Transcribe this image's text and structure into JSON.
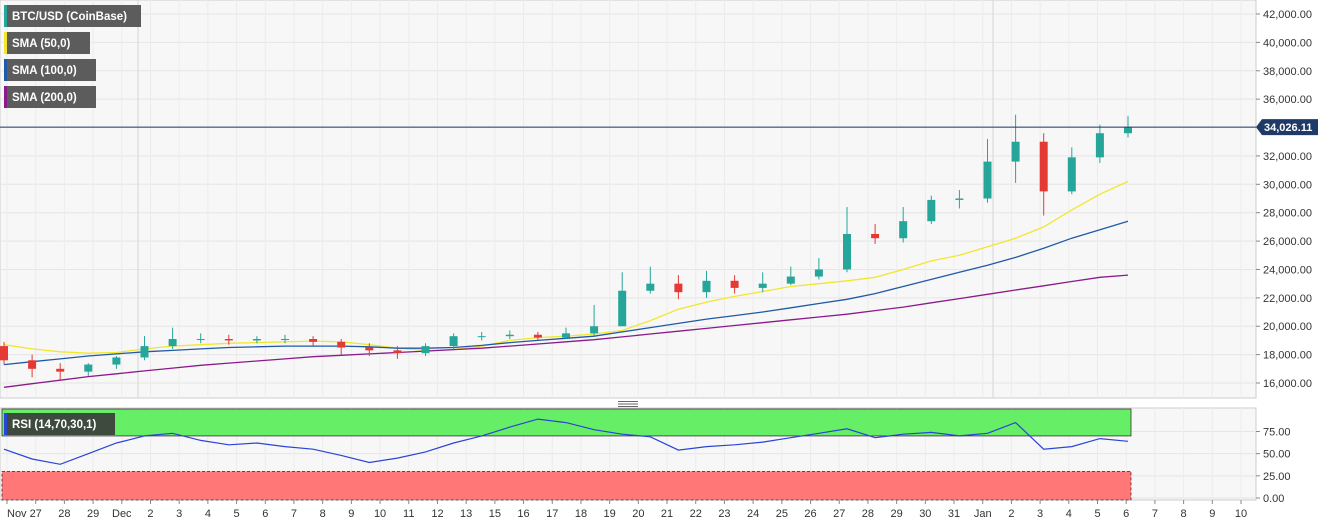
{
  "chart_data": [
    {
      "type": "candlestick",
      "title": "BTC/USD (CoinBase)",
      "last_price_label": "34,026.11",
      "last_price": 34026.11,
      "ylim": [
        15000,
        43000
      ],
      "y_ticks": [
        16000,
        18000,
        20000,
        22000,
        24000,
        26000,
        28000,
        30000,
        32000,
        34000,
        36000,
        38000,
        40000,
        42000
      ],
      "y_tick_labels": [
        "16,000.00",
        "18,000.00",
        "20,000.00",
        "22,000.00",
        "24,000.00",
        "26,000.00",
        "28,000.00",
        "30,000.00",
        "32,000.00",
        "34,000.00",
        "36,000.00",
        "38,000.00",
        "40,000.00",
        "42,000.00"
      ],
      "x_labels": [
        "Nov",
        "27",
        "28",
        "29",
        "Dec",
        "2",
        "3",
        "4",
        "5",
        "6",
        "7",
        "8",
        "9",
        "10",
        "11",
        "12",
        "13",
        "15",
        "16",
        "17",
        "18",
        "19",
        "20",
        "21",
        "22",
        "23",
        "24",
        "25",
        "26",
        "27",
        "28",
        "29",
        "30",
        "31",
        "Jan",
        "2",
        "3",
        "4",
        "5",
        "6",
        "7",
        "8",
        "9",
        "10"
      ],
      "grid": true,
      "series": [
        {
          "name": "SMA (50,0)",
          "type": "line",
          "values": [
            18700,
            18400,
            18200,
            18100,
            18150,
            18400,
            18600,
            18700,
            18800,
            18850,
            18900,
            18950,
            18900,
            18700,
            18450,
            18300,
            18350,
            18600,
            19000,
            19200,
            19300,
            19450,
            19700,
            20400,
            21200,
            21700,
            22100,
            22450,
            22800,
            23000,
            23200,
            23450,
            24000,
            24600,
            25000,
            25600,
            26200,
            27000,
            28200,
            29300,
            30200
          ]
        },
        {
          "name": "SMA (100,0)",
          "type": "line",
          "values": [
            17300,
            17500,
            17700,
            17900,
            18050,
            18200,
            18300,
            18400,
            18500,
            18550,
            18600,
            18600,
            18600,
            18550,
            18450,
            18450,
            18500,
            18650,
            18850,
            19000,
            19150,
            19300,
            19600,
            19900,
            20200,
            20500,
            20750,
            21000,
            21300,
            21600,
            21900,
            22300,
            22800,
            23300,
            23800,
            24300,
            24850,
            25500,
            26200,
            26800,
            27400
          ]
        },
        {
          "name": "SMA (200,0)",
          "type": "line",
          "values": [
            15700,
            15950,
            16200,
            16450,
            16650,
            16850,
            17050,
            17250,
            17400,
            17550,
            17700,
            17850,
            17950,
            18050,
            18150,
            18250,
            18350,
            18450,
            18600,
            18750,
            18900,
            19050,
            19250,
            19450,
            19650,
            19850,
            20050,
            20250,
            20450,
            20650,
            20850,
            21100,
            21350,
            21650,
            21950,
            22250,
            22550,
            22850,
            23150,
            23450,
            23600
          ]
        }
      ],
      "candles": {
        "open": [
          18600,
          17600,
          17000,
          16800,
          17300,
          17800,
          18600,
          19100,
          19100,
          19000,
          19100,
          19100,
          18900,
          18500,
          18300,
          18100,
          18600,
          19300,
          19300,
          19400,
          19200,
          19500,
          20000,
          22500,
          23000,
          22400,
          23200,
          22700,
          23000,
          23500,
          24000,
          26500,
          26200,
          27400,
          28900,
          29000,
          31600,
          33000,
          29500,
          31900,
          33600
        ],
        "close": [
          17600,
          17000,
          16800,
          17300,
          17800,
          18600,
          19100,
          19100,
          19000,
          19100,
          19100,
          18900,
          18500,
          18300,
          18100,
          18600,
          19300,
          19300,
          19400,
          19200,
          19500,
          20000,
          22500,
          23000,
          22400,
          23200,
          22700,
          23000,
          23500,
          24000,
          26500,
          26200,
          27400,
          28900,
          29000,
          31600,
          33000,
          29500,
          31900,
          33600,
          34026
        ],
        "high": [
          18900,
          18000,
          17400,
          17400,
          17900,
          19300,
          19900,
          19500,
          19400,
          19300,
          19400,
          19300,
          19100,
          18800,
          18600,
          18800,
          19500,
          19600,
          19700,
          19600,
          19900,
          21500,
          23800,
          24200,
          23600,
          23900,
          23600,
          23800,
          24200,
          24800,
          28400,
          27200,
          28400,
          29200,
          29600,
          33200,
          34900,
          33600,
          32600,
          34200,
          34800
        ],
        "low": [
          17300,
          16400,
          16200,
          16500,
          17000,
          17600,
          18400,
          18800,
          18700,
          18800,
          18800,
          18600,
          18000,
          17900,
          17700,
          17900,
          18400,
          19000,
          19100,
          19000,
          19100,
          19300,
          20000,
          22300,
          21900,
          22000,
          22300,
          22400,
          22900,
          23300,
          23800,
          25800,
          25900,
          27200,
          28300,
          28700,
          30100,
          27800,
          29300,
          31500,
          33300
        ]
      }
    },
    {
      "type": "line",
      "title": "RSI (14,70,30,1)",
      "ylim": [
        0,
        100
      ],
      "y_ticks": [
        0,
        25,
        50,
        75
      ],
      "y_tick_labels": [
        "0.00",
        "25.00",
        "50.00",
        "75.00"
      ],
      "overbought": 70,
      "oversold": 30,
      "series": [
        {
          "name": "RSI (14,70,30,1)",
          "values": [
            55,
            44,
            38,
            50,
            62,
            70,
            73,
            65,
            60,
            62,
            58,
            55,
            48,
            40,
            45,
            52,
            62,
            70,
            80,
            89,
            85,
            77,
            72,
            69,
            54,
            58,
            60,
            63,
            68,
            73,
            78,
            68,
            72,
            74,
            70,
            73,
            85,
            55,
            58,
            67,
            64
          ]
        }
      ]
    }
  ],
  "colors": {
    "up": "#26a69a",
    "down": "#e53935",
    "sma50": "#f2e62e",
    "sma100": "#1f5aa6",
    "sma200": "#8b1a8b",
    "rsi_line": "#2a44d8",
    "overbought_zone": "#66ee66",
    "oversold_zone": "#ff7777",
    "price_line": "#1f3a66",
    "label_bg": "#5c5c5c"
  },
  "icons": {
    "pane_separator": "drag-handle-icon"
  }
}
